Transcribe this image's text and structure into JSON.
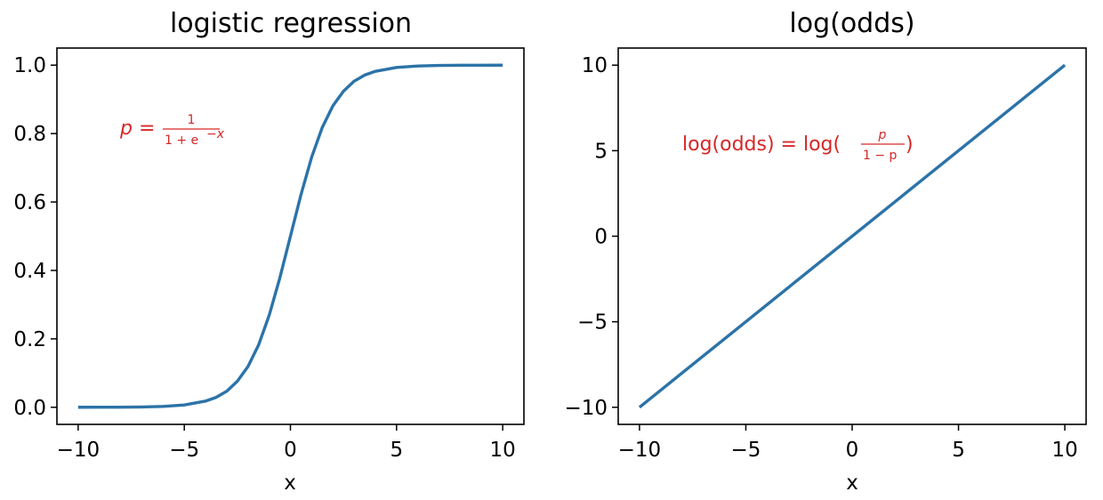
{
  "chart_data": [
    {
      "type": "line",
      "title": "logistic regression",
      "xlabel": "x",
      "ylabel": "",
      "xlim": [
        -11,
        11
      ],
      "ylim": [
        -0.05,
        1.05
      ],
      "xticks": [
        -10,
        -5,
        0,
        5,
        10
      ],
      "yticks": [
        0.0,
        0.2,
        0.4,
        0.6,
        0.8,
        1.0
      ],
      "xtick_labels": [
        "−10",
        "−5",
        "0",
        "5",
        "10"
      ],
      "ytick_labels": [
        "0.0",
        "0.2",
        "0.4",
        "0.6",
        "0.8",
        "1.0"
      ],
      "grid": false,
      "annotation": {
        "lhs": "p =",
        "numerator": "1",
        "denominator": "1 + e",
        "superscript": "−x"
      },
      "series": [
        {
          "color": "#2c73a8",
          "x": [
            -10,
            -9,
            -8,
            -7,
            -6,
            -5,
            -4,
            -3.5,
            -3,
            -2.5,
            -2,
            -1.5,
            -1,
            -0.5,
            0,
            0.5,
            1,
            1.5,
            2,
            2.5,
            3,
            3.5,
            4,
            5,
            6,
            7,
            8,
            9,
            10
          ],
          "y": [
            5e-05,
            0.00012,
            0.00034,
            0.0009,
            0.0025,
            0.0067,
            0.018,
            0.029,
            0.047,
            0.076,
            0.119,
            0.182,
            0.269,
            0.378,
            0.5,
            0.622,
            0.731,
            0.818,
            0.881,
            0.924,
            0.953,
            0.971,
            0.982,
            0.9933,
            0.9975,
            0.9991,
            0.99966,
            0.99988,
            0.99995
          ]
        }
      ]
    },
    {
      "type": "line",
      "title": "log(odds)",
      "xlabel": "x",
      "ylabel": "",
      "xlim": [
        -11,
        11
      ],
      "ylim": [
        -11,
        11
      ],
      "xticks": [
        -10,
        -5,
        0,
        5,
        10
      ],
      "yticks": [
        -10,
        -5,
        0,
        5,
        10
      ],
      "xtick_labels": [
        "−10",
        "−5",
        "0",
        "5",
        "10"
      ],
      "ytick_labels": [
        "−10",
        "−5",
        "0",
        "5",
        "10"
      ],
      "grid": false,
      "annotation": {
        "lhs": "log(odds) = log(",
        "numerator": "p",
        "denominator": "1 − p",
        "rhs": ")"
      },
      "series": [
        {
          "color": "#2c73a8",
          "x": [
            -10,
            10
          ],
          "y": [
            -10,
            10
          ]
        }
      ]
    }
  ]
}
